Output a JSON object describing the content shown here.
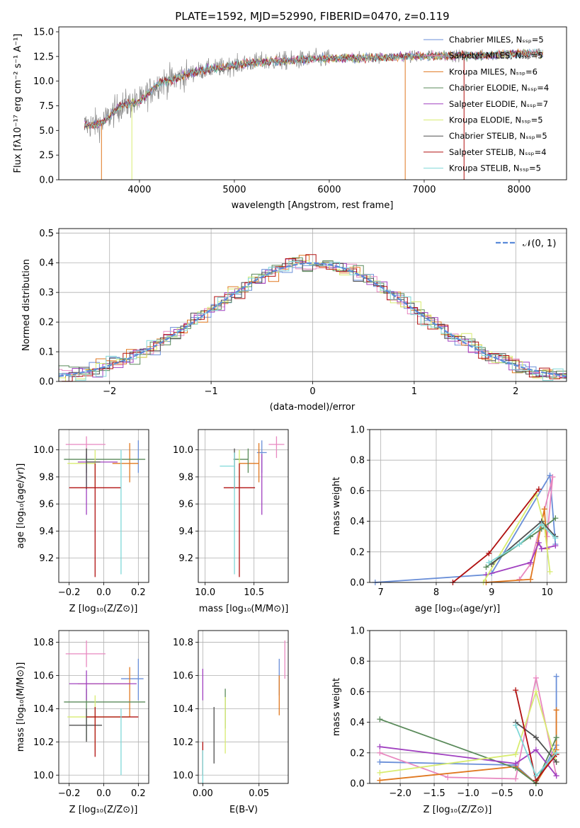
{
  "colors": {
    "chabrier_miles": "#6a8fd8",
    "salpeter_miles": "#e888c0",
    "kroupa_miles": "#e07820",
    "chabrier_elodie": "#5a8a5a",
    "salpeter_elodie": "#a040c0",
    "kroupa_elodie": "#d8ec70",
    "chabrier_stelib": "#505050",
    "salpeter_stelib": "#b01010",
    "kroupa_stelib": "#80d8d8",
    "spectrum_grey": "#888888",
    "gauss": "#5b8bd9"
  },
  "chart_data": [
    {
      "type": "line",
      "panel": "spectrum",
      "title": "PLATE=1592, MJD=52990, FIBERID=0470, z=0.119",
      "xlabel": "wavelength [Angstrom, rest frame]",
      "ylabel": "Flux [fλ10⁻¹⁷ erg cm⁻² s⁻¹ A⁻¹]",
      "xlim": [
        3150,
        8500
      ],
      "ylim": [
        0,
        15.5
      ],
      "xticks": [
        "4000",
        "5000",
        "6000",
        "7000",
        "8000"
      ],
      "yticks": [
        "0.0",
        "2.5",
        "5.0",
        "7.5",
        "10.0",
        "12.5",
        "15.0"
      ],
      "continuum_x": [
        3400,
        3600,
        3800,
        4000,
        4200,
        4400,
        4600,
        4800,
        5000,
        5200,
        5400,
        5600,
        5800,
        6000,
        6200,
        6400,
        6600,
        6800,
        7000,
        7200,
        7400,
        7600,
        7800,
        8000,
        8250
      ],
      "continuum_y": [
        5.5,
        5.7,
        7.5,
        7.9,
        9.8,
        10.3,
        11.0,
        11.3,
        11.6,
        11.9,
        12.0,
        12.1,
        12.2,
        12.3,
        12.3,
        12.4,
        12.4,
        12.5,
        12.5,
        12.6,
        12.6,
        12.6,
        12.7,
        12.8,
        12.8
      ],
      "legend": [
        {
          "label": "Chabrier MILES, Nₛₛₚ=5",
          "color_key": "chabrier_miles"
        },
        {
          "label": "Salpeter MILES, Nₛₛₚ=5",
          "color_key": "salpeter_miles"
        },
        {
          "label": "Kroupa MILES, Nₛₛₚ=6",
          "color_key": "kroupa_miles"
        },
        {
          "label": "Chabrier ELODIE, Nₛₛₚ=4",
          "color_key": "chabrier_elodie"
        },
        {
          "label": "Salpeter ELODIE, Nₛₛₚ=7",
          "color_key": "salpeter_elodie"
        },
        {
          "label": "Kroupa ELODIE, Nₛₛₚ=5",
          "color_key": "kroupa_elodie"
        },
        {
          "label": "Chabrier STELIB, Nₛₛₚ=5",
          "color_key": "chabrier_stelib"
        },
        {
          "label": "Salpeter STELIB, Nₛₛₚ=4",
          "color_key": "salpeter_stelib"
        },
        {
          "label": "Kroupa STELIB, Nₛₛₚ=5",
          "color_key": "kroupa_stelib"
        }
      ],
      "legend_position": "top-right"
    },
    {
      "type": "histogram",
      "panel": "residuals",
      "xlabel": "(data-model)/error",
      "ylabel": "Normed distribution",
      "xlim": [
        -2.5,
        2.5
      ],
      "ylim": [
        0,
        0.515
      ],
      "xticks": [
        "−2",
        "−1",
        "0",
        "1",
        "2"
      ],
      "yticks": [
        "0.0",
        "0.1",
        "0.2",
        "0.3",
        "0.4",
        "0.5"
      ],
      "grid": true,
      "legend": [
        {
          "label": "𝒩(0, 1)",
          "color_key": "gauss"
        }
      ],
      "legend_position": "top-right"
    },
    {
      "type": "scatter",
      "panel": "age_vs_Z",
      "xlabel": "Z [log₁₀(Z/Z⊙)]",
      "ylabel": "age  [log₁₀(age/yr)]",
      "xlim": [
        -0.26,
        0.26
      ],
      "ylim": [
        9.02,
        10.15
      ],
      "xticks": [
        "−0.2",
        "0.0",
        "0.2"
      ],
      "yticks": [
        "9.2",
        "9.4",
        "9.6",
        "9.8",
        "10.0"
      ],
      "grid": true,
      "points": [
        {
          "color_key": "chabrier_miles",
          "x": 0.2,
          "y": 9.98,
          "xerr": [
            0.0,
            0.0
          ],
          "yerr": [
            0.15,
            0.09
          ]
        },
        {
          "color_key": "salpeter_miles",
          "x": -0.1,
          "y": 10.04,
          "xerr": [
            0.12,
            0.11
          ],
          "yerr": [
            0.1,
            0.06
          ]
        },
        {
          "color_key": "kroupa_miles",
          "x": 0.15,
          "y": 9.9,
          "xerr": [
            0.1,
            0.05
          ],
          "yerr": [
            0.14,
            0.15
          ]
        },
        {
          "color_key": "chabrier_elodie",
          "x": -0.1,
          "y": 9.93,
          "xerr": [
            0.13,
            0.34
          ],
          "yerr": [
            0.1,
            0.08
          ]
        },
        {
          "color_key": "salpeter_elodie",
          "x": -0.1,
          "y": 9.91,
          "xerr": [
            0.05,
            0.18
          ],
          "yerr": [
            0.39,
            0.06
          ]
        },
        {
          "color_key": "kroupa_elodie",
          "x": -0.05,
          "y": 9.9,
          "xerr": [
            0.16,
            0.0
          ],
          "yerr": [
            0.17,
            0.1
          ]
        },
        {
          "color_key": "chabrier_stelib",
          "x": -0.1,
          "y": 9.91,
          "xerr": [
            0.0,
            0.08
          ],
          "yerr": [
            0.2,
            0.1
          ]
        },
        {
          "color_key": "salpeter_stelib",
          "x": -0.05,
          "y": 9.72,
          "xerr": [
            0.15,
            0.15
          ],
          "yerr": [
            0.66,
            0.18
          ]
        },
        {
          "color_key": "kroupa_stelib",
          "x": 0.1,
          "y": 9.9,
          "xerr": [
            0.0,
            0.0
          ],
          "yerr": [
            0.82,
            0.1
          ]
        }
      ]
    },
    {
      "type": "scatter",
      "panel": "age_vs_mass",
      "xlabel": "mass [log₁₀(M/M⊙)]",
      "ylabel": "",
      "xlim": [
        9.93,
        10.85
      ],
      "ylim": [
        9.02,
        10.15
      ],
      "xticks": [
        "10.0",
        "10.5"
      ],
      "yticks": [
        "9.2",
        "9.4",
        "9.6",
        "9.8",
        "10.0"
      ],
      "grid": true,
      "points": [
        {
          "color_key": "chabrier_miles",
          "x": 10.58,
          "y": 9.98,
          "xerr": [
            0.05,
            0.05
          ],
          "yerr": [
            0.15,
            0.09
          ]
        },
        {
          "color_key": "salpeter_miles",
          "x": 10.73,
          "y": 10.04,
          "xerr": [
            0.08,
            0.08
          ],
          "yerr": [
            0.1,
            0.06
          ]
        },
        {
          "color_key": "kroupa_miles",
          "x": 10.55,
          "y": 9.9,
          "xerr": [
            0.2,
            0.0
          ],
          "yerr": [
            0.14,
            0.15
          ]
        },
        {
          "color_key": "chabrier_elodie",
          "x": 10.44,
          "y": 9.93,
          "xerr": [
            0.15,
            0.0
          ],
          "yerr": [
            0.1,
            0.08
          ]
        },
        {
          "color_key": "salpeter_elodie",
          "x": 10.58,
          "y": 9.91,
          "xerr": [
            0.0,
            0.0
          ],
          "yerr": [
            0.39,
            0.06
          ]
        },
        {
          "color_key": "kroupa_elodie",
          "x": 10.35,
          "y": 9.9,
          "xerr": [
            0.0,
            0.0
          ],
          "yerr": [
            0.17,
            0.1
          ]
        },
        {
          "color_key": "chabrier_stelib",
          "x": 10.3,
          "y": 9.91,
          "xerr": [
            0.0,
            0.0
          ],
          "yerr": [
            0.2,
            0.1
          ]
        },
        {
          "color_key": "salpeter_stelib",
          "x": 10.35,
          "y": 9.72,
          "xerr": [
            0.16,
            0.16
          ],
          "yerr": [
            0.66,
            0.18
          ]
        },
        {
          "color_key": "kroupa_stelib",
          "x": 10.3,
          "y": 9.88,
          "xerr": [
            0.15,
            0.0
          ],
          "yerr": [
            0.8,
            0.1
          ]
        }
      ]
    },
    {
      "type": "line",
      "panel": "weight_vs_age",
      "xlabel": "age  [log₁₀(age/yr)]",
      "ylabel": "mass weight",
      "xlim": [
        6.8,
        10.35
      ],
      "ylim": [
        0,
        1.0
      ],
      "xticks": [
        "7",
        "8",
        "9",
        "10"
      ],
      "yticks": [
        "0.0",
        "0.2",
        "0.4",
        "0.6",
        "0.8",
        "1.0"
      ],
      "grid": true,
      "series": [
        {
          "color_key": "chabrier_miles",
          "x": [
            6.9,
            8.9,
            9.0,
            10.05,
            10.15
          ],
          "y": [
            0.0,
            0.05,
            0.06,
            0.7,
            0.25
          ]
        },
        {
          "color_key": "salpeter_miles",
          "x": [
            9.5,
            9.7,
            9.9,
            10.1,
            10.0
          ],
          "y": [
            0.02,
            0.12,
            0.4,
            0.69,
            0.3
          ]
        },
        {
          "color_key": "kroupa_miles",
          "x": [
            8.9,
            9.7,
            9.95,
            10.0
          ],
          "y": [
            0.0,
            0.02,
            0.48,
            0.22
          ]
        },
        {
          "color_key": "chabrier_elodie",
          "x": [
            8.9,
            9.7,
            9.9,
            10.15
          ],
          "y": [
            0.1,
            0.3,
            0.35,
            0.42
          ]
        },
        {
          "color_key": "salpeter_elodie",
          "x": [
            8.9,
            9.7,
            9.85,
            9.9,
            10.15
          ],
          "y": [
            0.05,
            0.13,
            0.26,
            0.22,
            0.24
          ]
        },
        {
          "color_key": "kroupa_elodie",
          "x": [
            8.85,
            9.8,
            9.95,
            10.05
          ],
          "y": [
            0.0,
            0.58,
            0.37,
            0.07
          ]
        },
        {
          "color_key": "chabrier_stelib",
          "x": [
            9.0,
            9.9,
            10.15
          ],
          "y": [
            0.12,
            0.4,
            0.3
          ]
        },
        {
          "color_key": "salpeter_stelib",
          "x": [
            8.3,
            8.95,
            9.85
          ],
          "y": [
            0.0,
            0.19,
            0.61
          ]
        },
        {
          "color_key": "kroupa_stelib",
          "x": [
            8.95,
            9.5,
            9.9,
            10.15
          ],
          "y": [
            0.13,
            0.25,
            0.38,
            0.29
          ]
        }
      ]
    },
    {
      "type": "scatter",
      "panel": "mass_vs_Z",
      "xlabel": "Z [log₁₀(Z/Z⊙)]",
      "ylabel": "mass [log₁₀(M/M⊙)]",
      "xlim": [
        -0.26,
        0.26
      ],
      "ylim": [
        9.95,
        10.87
      ],
      "xticks": [
        "−0.2",
        "0.0",
        "0.2"
      ],
      "yticks": [
        "10.0",
        "10.2",
        "10.4",
        "10.6",
        "10.8"
      ],
      "grid": true,
      "points": [
        {
          "color_key": "chabrier_miles",
          "x": 0.2,
          "y": 10.58,
          "xerr": [
            0.1,
            0.03
          ],
          "yerr": [
            0.13,
            0.12
          ]
        },
        {
          "color_key": "salpeter_miles",
          "x": -0.1,
          "y": 10.73,
          "xerr": [
            0.12,
            0.11
          ],
          "yerr": [
            0.08,
            0.08
          ]
        },
        {
          "color_key": "kroupa_miles",
          "x": 0.15,
          "y": 10.55,
          "xerr": [
            0.3,
            0.0
          ],
          "yerr": [
            0.2,
            0.1
          ]
        },
        {
          "color_key": "chabrier_elodie",
          "x": -0.1,
          "y": 10.44,
          "xerr": [
            0.13,
            0.34
          ],
          "yerr": [
            0.23,
            0.08
          ]
        },
        {
          "color_key": "salpeter_elodie",
          "x": -0.1,
          "y": 10.55,
          "xerr": [
            0.1,
            0.29
          ],
          "yerr": [
            0.1,
            0.08
          ]
        },
        {
          "color_key": "kroupa_elodie",
          "x": -0.05,
          "y": 10.35,
          "xerr": [
            0.16,
            0.2
          ],
          "yerr": [
            0.2,
            0.13
          ]
        },
        {
          "color_key": "chabrier_stelib",
          "x": -0.1,
          "y": 10.3,
          "xerr": [
            0.1,
            0.09
          ],
          "yerr": [
            0.1,
            0.1
          ]
        },
        {
          "color_key": "salpeter_stelib",
          "x": -0.05,
          "y": 10.35,
          "xerr": [
            0.05,
            0.25
          ],
          "yerr": [
            0.24,
            0.06
          ]
        },
        {
          "color_key": "kroupa_stelib",
          "x": 0.1,
          "y": 10.3,
          "xerr": [
            0.0,
            0.0
          ],
          "yerr": [
            0.3,
            0.1
          ]
        }
      ]
    },
    {
      "type": "scatter",
      "panel": "mass_vs_ebv",
      "xlabel": "E(B-V)",
      "ylabel": "",
      "xlim": [
        -0.004,
        0.076
      ],
      "ylim": [
        9.95,
        10.87
      ],
      "xticks": [
        "0.00",
        "0.05"
      ],
      "yticks": [
        "10.0",
        "10.2",
        "10.4",
        "10.6",
        "10.8"
      ],
      "grid": true,
      "points": [
        {
          "color_key": "chabrier_miles",
          "x": 0.068,
          "y": 10.58,
          "xerr": [
            0.0,
            0.0
          ],
          "yerr": [
            0.1,
            0.12
          ]
        },
        {
          "color_key": "salpeter_miles",
          "x": 0.073,
          "y": 10.7,
          "xerr": [
            0.0,
            0.0
          ],
          "yerr": [
            0.12,
            0.11
          ]
        },
        {
          "color_key": "kroupa_miles",
          "x": 0.068,
          "y": 10.5,
          "xerr": [
            0.0,
            0.0
          ],
          "yerr": [
            0.14,
            0.1
          ]
        },
        {
          "color_key": "chabrier_elodie",
          "x": 0.02,
          "y": 10.44,
          "xerr": [
            0.0,
            0.0
          ],
          "yerr": [
            0.16,
            0.08
          ]
        },
        {
          "color_key": "salpeter_elodie",
          "x": 0.0,
          "y": 10.55,
          "xerr": [
            0.0,
            0.0
          ],
          "yerr": [
            0.1,
            0.09
          ]
        },
        {
          "color_key": "kroupa_elodie",
          "x": 0.02,
          "y": 10.35,
          "xerr": [
            0.0,
            0.0
          ],
          "yerr": [
            0.22,
            0.12
          ]
        },
        {
          "color_key": "chabrier_stelib",
          "x": 0.01,
          "y": 10.25,
          "xerr": [
            0.0,
            0.0
          ],
          "yerr": [
            0.18,
            0.16
          ]
        },
        {
          "color_key": "salpeter_stelib",
          "x": 0.0,
          "y": 10.1,
          "xerr": [
            0.0,
            0.0
          ],
          "yerr": [
            0.1,
            0.1
          ]
        },
        {
          "color_key": "kroupa_stelib",
          "x": 0.0,
          "y": 10.05,
          "xerr": [
            0.0,
            0.0
          ],
          "yerr": [
            0.1,
            0.1
          ]
        }
      ]
    },
    {
      "type": "line",
      "panel": "weight_vs_Z",
      "xlabel": "Z [log₁₀(Z/Z⊙)]",
      "ylabel": "mass weight",
      "xlim": [
        -2.45,
        0.45
      ],
      "ylim": [
        0,
        1.0
      ],
      "xticks": [
        "−2.0",
        "−1.5",
        "−1.0",
        "−0.5",
        "0.0"
      ],
      "yticks": [
        "0.0",
        "0.2",
        "0.4",
        "0.6",
        "0.8",
        "1.0"
      ],
      "grid": true,
      "series": [
        {
          "color_key": "chabrier_miles",
          "x": [
            -2.3,
            -0.3,
            0.0,
            0.3,
            0.3
          ],
          "y": [
            0.14,
            0.12,
            0.0,
            0.25,
            0.7
          ]
        },
        {
          "color_key": "salpeter_miles",
          "x": [
            -2.3,
            -1.3,
            -0.3,
            0.0,
            0.3
          ],
          "y": [
            0.2,
            0.04,
            0.03,
            0.69,
            0.05
          ]
        },
        {
          "color_key": "kroupa_miles",
          "x": [
            -2.3,
            -0.3,
            0.0,
            0.3,
            0.3
          ],
          "y": [
            0.02,
            0.11,
            0.0,
            0.22,
            0.48
          ]
        },
        {
          "color_key": "chabrier_elodie",
          "x": [
            -2.3,
            -0.3,
            0.0,
            0.3
          ],
          "y": [
            0.42,
            0.1,
            0.0,
            0.3
          ]
        },
        {
          "color_key": "salpeter_elodie",
          "x": [
            -2.3,
            -0.3,
            0.0,
            0.3
          ],
          "y": [
            0.24,
            0.13,
            0.22,
            0.05
          ]
        },
        {
          "color_key": "kroupa_elodie",
          "x": [
            -2.3,
            -0.3,
            0.0,
            0.3
          ],
          "y": [
            0.07,
            0.19,
            0.6,
            0.14
          ]
        },
        {
          "color_key": "chabrier_stelib",
          "x": [
            -0.3,
            0.0,
            0.3
          ],
          "y": [
            0.4,
            0.3,
            0.14
          ]
        },
        {
          "color_key": "salpeter_stelib",
          "x": [
            -0.3,
            0.0,
            0.3
          ],
          "y": [
            0.61,
            0.02,
            0.19
          ]
        },
        {
          "color_key": "kroupa_stelib",
          "x": [
            -0.3,
            0.0,
            0.3
          ],
          "y": [
            0.38,
            0.05,
            0.2
          ]
        }
      ]
    }
  ]
}
